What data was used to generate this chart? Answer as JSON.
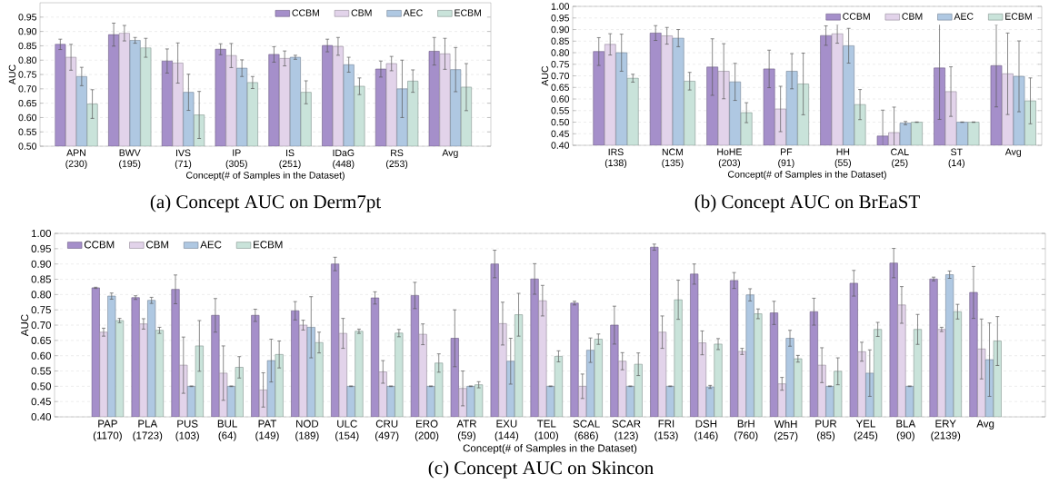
{
  "chart_data": [
    {
      "type": "bar",
      "title": "(a) Concept AUC on Derm7pt",
      "xlabel": "Concept(# of Samples in the Dataset)",
      "ylabel": "AUC",
      "categories": [
        "APN (230)",
        "BWV (195)",
        "IVS (71)",
        "IP (305)",
        "IS (251)",
        "IDaG (448)",
        "RS (253)",
        "Avg"
      ],
      "series": [
        {
          "name": "CCBM",
          "color": "#a58fca",
          "values": [
            0.855,
            0.889,
            0.797,
            0.838,
            0.82,
            0.851,
            0.769,
            0.831
          ],
          "errors": [
            0.018,
            0.04,
            0.042,
            0.019,
            0.027,
            0.022,
            0.028,
            0.048
          ]
        },
        {
          "name": "CBM",
          "color": "#e2d3ea",
          "values": [
            0.81,
            0.894,
            0.79,
            0.816,
            0.806,
            0.848,
            0.788,
            0.822
          ],
          "errors": [
            0.045,
            0.027,
            0.07,
            0.042,
            0.026,
            0.031,
            0.025,
            0.054
          ]
        },
        {
          "name": "AEC",
          "color": "#afc8e2",
          "values": [
            0.743,
            0.869,
            0.688,
            0.772,
            0.81,
            0.784,
            0.7,
            0.767
          ],
          "errors": [
            0.032,
            0.01,
            0.063,
            0.029,
            0.007,
            0.026,
            0.1,
            0.077
          ]
        },
        {
          "name": "ECBM",
          "color": "#c9e3da",
          "values": [
            0.647,
            0.843,
            0.609,
            0.722,
            0.688,
            0.709,
            0.727,
            0.706
          ],
          "errors": [
            0.05,
            0.033,
            0.082,
            0.021,
            0.04,
            0.029,
            0.039,
            0.082
          ]
        }
      ],
      "ylim": [
        0.5,
        1.0
      ],
      "yticks": [
        {
          "value": 0.5,
          "label": "0.50"
        },
        {
          "value": 0.55,
          "label": "0.55"
        },
        {
          "value": 0.6,
          "label": "0.60"
        },
        {
          "value": 0.65,
          "label": "0.65"
        },
        {
          "value": 0.7,
          "label": "0.70"
        },
        {
          "value": 0.75,
          "label": "0.75"
        },
        {
          "value": 0.8,
          "label": "0.80"
        },
        {
          "value": 0.85,
          "label": "0.85"
        },
        {
          "value": 0.9,
          "label": "0.90"
        },
        {
          "value": 0.95,
          "label": "0.95"
        }
      ],
      "grid": "y",
      "legend": "top right"
    },
    {
      "type": "bar",
      "title": "(b) Concept AUC on BrEaST",
      "xlabel": "Concept(# of Samples in the Dataset)",
      "ylabel": "AUC",
      "categories": [
        "IRS (138)",
        "NCM (135)",
        "HoHE (203)",
        "PF (91)",
        "HH (55)",
        "CAL (25)",
        "ST (14)",
        "Avg"
      ],
      "series": [
        {
          "name": "CCBM",
          "color": "#a58fca",
          "values": [
            0.805,
            0.885,
            0.738,
            0.73,
            0.874,
            0.44,
            0.734,
            0.744
          ],
          "errors": [
            0.06,
            0.032,
            0.122,
            0.081,
            0.042,
            0.112,
            0.222,
            0.178
          ]
        },
        {
          "name": "CBM",
          "color": "#e2d3ea",
          "values": [
            0.836,
            0.873,
            0.72,
            0.557,
            0.882,
            0.455,
            0.632,
            0.709
          ],
          "errors": [
            0.046,
            0.036,
            0.119,
            0.098,
            0.041,
            0.11,
            0.107,
            0.176
          ]
        },
        {
          "name": "AEC",
          "color": "#afc8e2",
          "values": [
            0.8,
            0.863,
            0.674,
            0.72,
            0.83,
            0.496,
            0.5,
            0.698
          ],
          "errors": [
            0.08,
            0.037,
            0.08,
            0.076,
            0.075,
            0.007,
            0.001,
            0.153
          ]
        },
        {
          "name": "ECBM",
          "color": "#c9e3da",
          "values": [
            0.69,
            0.677,
            0.541,
            0.665,
            0.576,
            0.5,
            0.5,
            0.592
          ],
          "errors": [
            0.017,
            0.038,
            0.043,
            0.133,
            0.065,
            0.001,
            0.001,
            0.099
          ]
        }
      ],
      "ylim": [
        0.4,
        1.0
      ],
      "yticks": [
        {
          "value": 0.4,
          "label": "0.40"
        },
        {
          "value": 0.45,
          "label": "0.45"
        },
        {
          "value": 0.5,
          "label": "0.50"
        },
        {
          "value": 0.55,
          "label": "0.55"
        },
        {
          "value": 0.6,
          "label": "0.60"
        },
        {
          "value": 0.65,
          "label": "0.65"
        },
        {
          "value": 0.7,
          "label": "0.70"
        },
        {
          "value": 0.75,
          "label": "0.75"
        },
        {
          "value": 0.8,
          "label": "0.80"
        },
        {
          "value": 0.85,
          "label": "0.85"
        },
        {
          "value": 0.9,
          "label": "0.90"
        },
        {
          "value": 0.95,
          "label": "0.95"
        },
        {
          "value": 1.0,
          "label": "1.00"
        }
      ],
      "grid": "y",
      "legend": "top right"
    },
    {
      "type": "bar",
      "title": "(c) Concept AUC on Skincon",
      "xlabel": "Concept(# of Samples in the Dataset)",
      "ylabel": "AUC",
      "categories": [
        "PAP (1170)",
        "PLA (1723)",
        "PUS (103)",
        "BUL (64)",
        "PAT (149)",
        "NOD (189)",
        "ULC (154)",
        "CRU (497)",
        "ERO (200)",
        "ATR (59)",
        "EXU (144)",
        "TEL (100)",
        "SCAL (686)",
        "SCAR (123)",
        "FRI (153)",
        "DSH (146)",
        "BrH (760)",
        "WhH (257)",
        "PUR (85)",
        "YEL (245)",
        "BLA (90)",
        "ERY (2139)",
        "Avg"
      ],
      "series": [
        {
          "name": "CCBM",
          "color": "#a58fca",
          "values": [
            0.822,
            0.79,
            0.817,
            0.732,
            0.732,
            0.747,
            0.9,
            0.789,
            0.797,
            0.657,
            0.9,
            0.851,
            0.772,
            0.7,
            0.955,
            0.867,
            0.846,
            0.74,
            0.744,
            0.837,
            0.903,
            0.851,
            0.807
          ],
          "errors": [
            0.002,
            0.006,
            0.047,
            0.055,
            0.02,
            0.03,
            0.022,
            0.02,
            0.043,
            0.093,
            0.045,
            0.05,
            0.006,
            0.062,
            0.01,
            0.033,
            0.026,
            0.038,
            0.044,
            0.042,
            0.048,
            0.006,
            0.085
          ]
        },
        {
          "name": "CBM",
          "color": "#e2d3ea",
          "values": [
            0.677,
            0.704,
            0.569,
            0.543,
            0.488,
            0.7,
            0.673,
            0.547,
            0.67,
            0.493,
            0.705,
            0.78,
            0.5,
            0.582,
            0.677,
            0.642,
            0.614,
            0.508,
            0.569,
            0.613,
            0.766,
            0.686,
            0.622
          ],
          "errors": [
            0.013,
            0.017,
            0.092,
            0.089,
            0.056,
            0.016,
            0.049,
            0.037,
            0.034,
            0.057,
            0.07,
            0.05,
            0.04,
            0.028,
            0.053,
            0.039,
            0.01,
            0.021,
            0.057,
            0.031,
            0.06,
            0.007,
            0.098
          ]
        },
        {
          "name": "AEC",
          "color": "#afc8e2",
          "values": [
            0.795,
            0.781,
            0.5,
            0.5,
            0.584,
            0.693,
            0.5,
            0.5,
            0.5,
            0.5,
            0.582,
            0.5,
            0.618,
            0.5,
            0.5,
            0.498,
            0.799,
            0.657,
            0.5,
            0.543,
            0.5,
            0.865,
            0.587
          ],
          "errors": [
            0.01,
            0.01,
            0.001,
            0.001,
            0.07,
            0.1,
            0.001,
            0.001,
            0.001,
            0.001,
            0.075,
            0.001,
            0.04,
            0.001,
            0.001,
            0.005,
            0.02,
            0.026,
            0.001,
            0.076,
            0.001,
            0.012,
            0.12
          ]
        },
        {
          "name": "ECBM",
          "color": "#c9e3da",
          "values": [
            0.715,
            0.683,
            0.632,
            0.562,
            0.604,
            0.643,
            0.68,
            0.674,
            0.576,
            0.505,
            0.734,
            0.598,
            0.654,
            0.572,
            0.783,
            0.638,
            0.737,
            0.59,
            0.549,
            0.686,
            0.686,
            0.744,
            0.648
          ],
          "errors": [
            0.007,
            0.01,
            0.083,
            0.035,
            0.044,
            0.034,
            0.007,
            0.012,
            0.03,
            0.01,
            0.07,
            0.018,
            0.017,
            0.037,
            0.064,
            0.018,
            0.016,
            0.011,
            0.044,
            0.023,
            0.049,
            0.024,
            0.08
          ]
        }
      ],
      "ylim": [
        0.4,
        1.0
      ],
      "yticks": [
        {
          "value": 0.4,
          "label": "0.40"
        },
        {
          "value": 0.45,
          "label": "0.45"
        },
        {
          "value": 0.5,
          "label": "0.50"
        },
        {
          "value": 0.55,
          "label": "0.55"
        },
        {
          "value": 0.6,
          "label": "0.60"
        },
        {
          "value": 0.65,
          "label": "0.65"
        },
        {
          "value": 0.7,
          "label": "0.70"
        },
        {
          "value": 0.75,
          "label": "0.75"
        },
        {
          "value": 0.8,
          "label": "0.80"
        },
        {
          "value": 0.85,
          "label": "0.85"
        },
        {
          "value": 0.9,
          "label": "0.90"
        },
        {
          "value": 0.95,
          "label": "0.95"
        },
        {
          "value": 1.0,
          "label": "1.00"
        }
      ],
      "grid": "y",
      "legend": "top left"
    }
  ]
}
